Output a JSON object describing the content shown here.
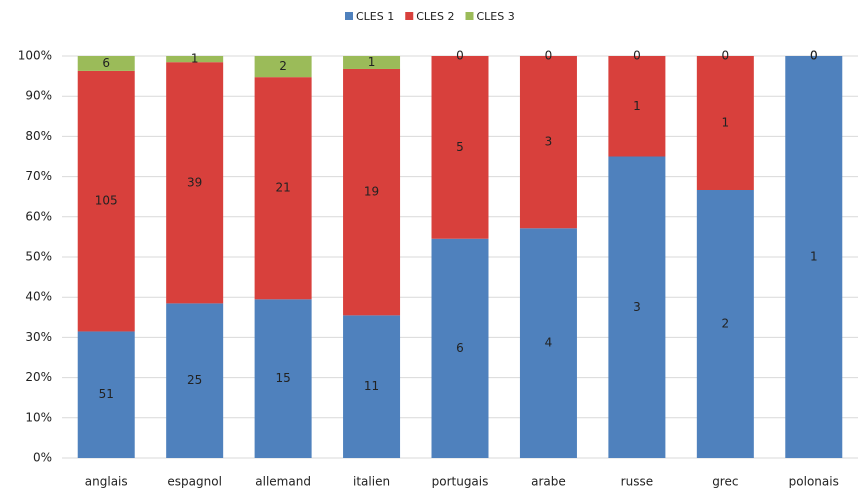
{
  "chart_data": {
    "type": "stacked100",
    "categories": [
      "anglais",
      "espagnol",
      "allemand",
      "italien",
      "portugais",
      "arabe",
      "russe",
      "grec",
      "polonais"
    ],
    "series": [
      {
        "name": "CLES 1",
        "color": "#4f81bd",
        "values": [
          51,
          25,
          15,
          11,
          6,
          4,
          3,
          2,
          1
        ]
      },
      {
        "name": "CLES 2",
        "color": "#d8403c",
        "values": [
          105,
          39,
          21,
          19,
          5,
          3,
          1,
          1,
          0
        ]
      },
      {
        "name": "CLES 3",
        "color": "#9bbb59",
        "values": [
          6,
          1,
          2,
          1,
          0,
          0,
          0,
          0,
          0
        ]
      }
    ],
    "ylim": [
      0,
      100
    ],
    "yticks": [
      {
        "value": 0,
        "label": "0%"
      },
      {
        "value": 10,
        "label": "10%"
      },
      {
        "value": 20,
        "label": "20%"
      },
      {
        "value": 30,
        "label": "30%"
      },
      {
        "value": 40,
        "label": "40%"
      },
      {
        "value": 50,
        "label": "50%"
      },
      {
        "value": 60,
        "label": "60%"
      },
      {
        "value": 70,
        "label": "70%"
      },
      {
        "value": 80,
        "label": "80%"
      },
      {
        "value": 90,
        "label": "90%"
      },
      {
        "value": 100,
        "label": "100%"
      }
    ],
    "grid": true,
    "legend": "top"
  }
}
